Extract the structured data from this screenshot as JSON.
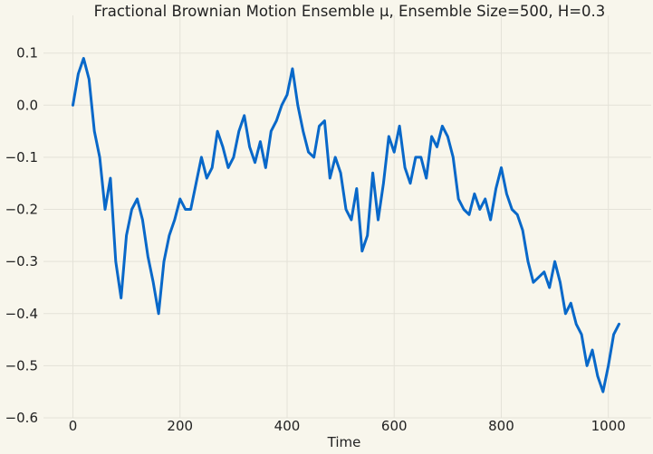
{
  "chart_data": {
    "type": "line",
    "title": "Fractional Brownian Motion Ensemble μ, Ensemble Size=500, H=0.3",
    "xlabel": "Time",
    "ylabel": "",
    "xlim": [
      -55,
      1080
    ],
    "ylim": [
      -0.6,
      0.155
    ],
    "xticks": [
      0,
      200,
      400,
      600,
      800,
      1000
    ],
    "xtick_labels": [
      "0",
      "200",
      "400",
      "600",
      "800",
      "1000"
    ],
    "yticks": [
      0.1,
      0.0,
      -0.1,
      -0.2,
      -0.3,
      -0.4,
      -0.5,
      -0.6
    ],
    "ytick_labels": [
      "0.1",
      "0.0",
      "−0.1",
      "−0.2",
      "−0.3",
      "−0.4",
      "−0.5",
      "−0.6"
    ],
    "grid": true,
    "series": [
      {
        "color": "#0868c9",
        "x": [
          0,
          10,
          20,
          30,
          40,
          50,
          60,
          70,
          80,
          90,
          100,
          110,
          120,
          130,
          140,
          150,
          160,
          170,
          180,
          190,
          200,
          210,
          220,
          230,
          240,
          250,
          260,
          270,
          280,
          290,
          300,
          310,
          320,
          330,
          340,
          350,
          360,
          370,
          380,
          390,
          400,
          410,
          420,
          430,
          440,
          450,
          460,
          470,
          480,
          490,
          500,
          510,
          520,
          530,
          540,
          550,
          560,
          570,
          580,
          590,
          600,
          610,
          620,
          630,
          640,
          650,
          660,
          670,
          680,
          690,
          700,
          710,
          720,
          730,
          740,
          750,
          760,
          770,
          780,
          790,
          800,
          810,
          820,
          830,
          840,
          850,
          860,
          870,
          880,
          890,
          900,
          910,
          920,
          930,
          940,
          950,
          960,
          970,
          980,
          990,
          1000,
          1010,
          1020
        ],
        "y": [
          0.0,
          0.06,
          0.09,
          0.05,
          -0.05,
          -0.1,
          -0.2,
          -0.14,
          -0.3,
          -0.37,
          -0.25,
          -0.2,
          -0.18,
          -0.22,
          -0.29,
          -0.34,
          -0.4,
          -0.3,
          -0.25,
          -0.22,
          -0.18,
          -0.2,
          -0.2,
          -0.15,
          -0.1,
          -0.14,
          -0.12,
          -0.05,
          -0.08,
          -0.12,
          -0.1,
          -0.05,
          -0.02,
          -0.08,
          -0.11,
          -0.07,
          -0.12,
          -0.05,
          -0.03,
          0.0,
          0.02,
          0.07,
          0.0,
          -0.05,
          -0.09,
          -0.1,
          -0.04,
          -0.03,
          -0.14,
          -0.1,
          -0.13,
          -0.2,
          -0.22,
          -0.16,
          -0.28,
          -0.25,
          -0.13,
          -0.22,
          -0.15,
          -0.06,
          -0.09,
          -0.04,
          -0.12,
          -0.15,
          -0.1,
          -0.1,
          -0.14,
          -0.06,
          -0.08,
          -0.04,
          -0.06,
          -0.1,
          -0.18,
          -0.2,
          -0.21,
          -0.17,
          -0.2,
          -0.18,
          -0.22,
          -0.16,
          -0.12,
          -0.17,
          -0.2,
          -0.21,
          -0.24,
          -0.3,
          -0.34,
          -0.33,
          -0.32,
          -0.35,
          -0.3,
          -0.34,
          -0.4,
          -0.38,
          -0.42,
          -0.44,
          -0.5,
          -0.47,
          -0.52,
          -0.55,
          -0.5,
          -0.44,
          -0.42
        ]
      }
    ]
  }
}
